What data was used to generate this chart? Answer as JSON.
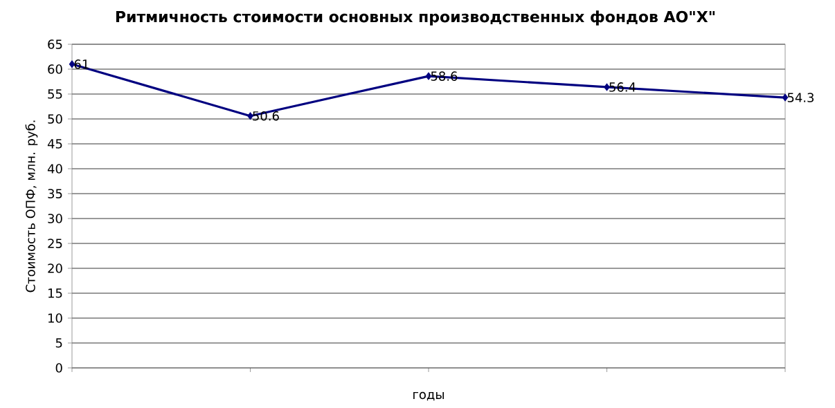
{
  "chart_data": {
    "type": "line",
    "title": "Ритмичность стоимости основных производственных фондов АО\"Х\"",
    "xlabel": "годы",
    "ylabel": "Стоимость ОПФ, млн. руб.",
    "categories": [
      null,
      null,
      null,
      null,
      null
    ],
    "values": [
      61,
      50.6,
      58.6,
      56.4,
      54.3
    ],
    "color": "#000080",
    "marker": "diamond",
    "data_labels": true,
    "grid": "y",
    "ylim": [
      0,
      65
    ],
    "yticks": [
      0,
      5,
      10,
      15,
      20,
      25,
      30,
      35,
      40,
      45,
      50,
      55,
      60,
      65
    ]
  }
}
